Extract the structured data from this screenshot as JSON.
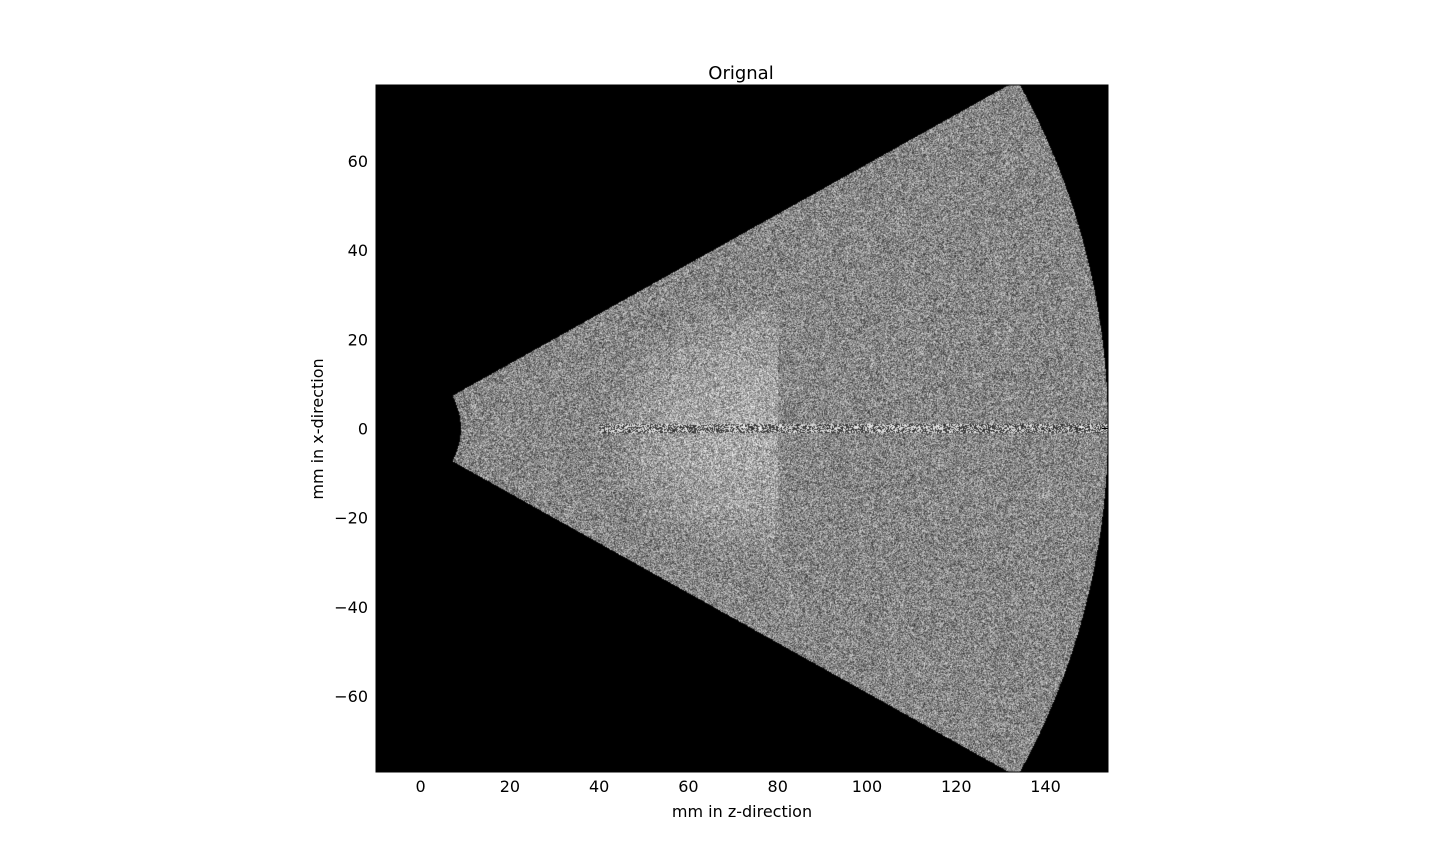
{
  "chart_data": {
    "type": "heatmap",
    "title": "Orignal",
    "xlabel": "mm in z-direction",
    "ylabel": "mm in x-direction",
    "xlim": [
      -10,
      154
    ],
    "ylim": [
      -77,
      77
    ],
    "x_ticks": [
      0,
      20,
      40,
      60,
      80,
      100,
      120,
      140
    ],
    "y_ticks": [
      60,
      40,
      20,
      0,
      -20,
      -40,
      -60
    ],
    "x_tick_labels": [
      "0",
      "20",
      "40",
      "60",
      "80",
      "100",
      "120",
      "140"
    ],
    "y_tick_labels": [
      "60",
      "40",
      "20",
      "0",
      "−20",
      "−40",
      "−60"
    ],
    "colormap": "gray",
    "background_color": "#000000",
    "grid": false,
    "legend": false,
    "sector": {
      "apex_z_mm": -6,
      "inner_radius_mm": 15,
      "outer_radius_mm": 160,
      "half_angle_deg": 29.2
    },
    "bright_region": {
      "center_z_mm": 75,
      "center_x_mm": 0,
      "radius_z_mm": 34,
      "radius_x_mm": 30
    },
    "center_line_x_mm": 0
  }
}
